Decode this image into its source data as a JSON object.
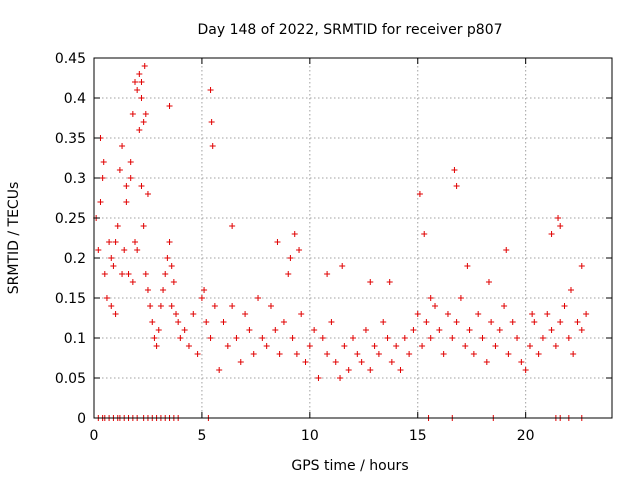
{
  "chart_data": {
    "type": "scatter",
    "title": "Day 148 of 2022, SRMTID for receiver p807",
    "xlabel": "GPS time / hours",
    "ylabel": "SRMTID / TECUs",
    "xlim": [
      0,
      24
    ],
    "ylim": [
      0,
      0.45
    ],
    "xticks": [
      0,
      5,
      10,
      15,
      20
    ],
    "yticks": [
      0,
      0.05,
      0.1,
      0.15,
      0.2,
      0.25,
      0.3,
      0.35,
      0.4,
      0.45
    ],
    "xtick_labels": [
      "0",
      "5",
      "10",
      "15",
      "20"
    ],
    "ytick_labels": [
      "0",
      "0.05",
      "0.1",
      "0.15",
      "0.2",
      "0.25",
      "0.3",
      "0.35",
      "0.4",
      "0.45"
    ],
    "grid": true,
    "marker": "+",
    "color": "#e00000",
    "series": [
      {
        "name": "SRMTID",
        "x": [
          0.1,
          0.2,
          0.3,
          0.4,
          0.5,
          0.6,
          0.7,
          0.8,
          0.9,
          1.0,
          1.1,
          1.2,
          1.3,
          1.4,
          1.5,
          1.6,
          1.7,
          1.8,
          1.9,
          2.0,
          2.1,
          2.2,
          2.3,
          2.4,
          2.5,
          2.6,
          2.7,
          2.8,
          2.9,
          3.0,
          3.1,
          3.2,
          3.3,
          3.4,
          3.5,
          3.6,
          3.7,
          3.8,
          3.9,
          4.0,
          4.2,
          4.4,
          4.6,
          4.8,
          5.0,
          5.2,
          5.4,
          5.6,
          5.8,
          6.0,
          6.2,
          6.4,
          6.6,
          6.8,
          7.0,
          7.2,
          7.4,
          7.6,
          7.8,
          8.0,
          8.2,
          8.4,
          8.6,
          8.8,
          9.0,
          9.2,
          9.4,
          9.6,
          9.8,
          10.0,
          10.2,
          10.4,
          10.6,
          10.8,
          11.0,
          11.2,
          11.4,
          11.6,
          11.8,
          12.0,
          12.2,
          12.4,
          12.6,
          12.8,
          13.0,
          13.2,
          13.4,
          13.6,
          13.8,
          14.0,
          14.2,
          14.4,
          14.6,
          14.8,
          15.0,
          15.2,
          15.4,
          15.6,
          15.8,
          16.0,
          16.2,
          16.4,
          16.6,
          16.8,
          17.0,
          17.2,
          17.4,
          17.6,
          17.8,
          18.0,
          18.2,
          18.4,
          18.6,
          18.8,
          19.0,
          19.2,
          19.4,
          19.6,
          19.8,
          20.0,
          20.2,
          20.4,
          20.6,
          20.8,
          21.0,
          21.2,
          21.4,
          21.6,
          21.8,
          22.0,
          22.2,
          22.4,
          22.6,
          22.8,
          0.3,
          0.45,
          0.8,
          1.0,
          1.3,
          1.5,
          1.7,
          1.9,
          2.1,
          2.2,
          2.3,
          2.4,
          2.5,
          3.5,
          5.4,
          5.45,
          5.5,
          6.4,
          8.5,
          9.3,
          9.5,
          11.5,
          12.8,
          15.1,
          15.3,
          16.7,
          16.8,
          21.5,
          21.6,
          22.6,
          1.8,
          2.0,
          2.2,
          2.35,
          3.6,
          5.1,
          9.1,
          10.8,
          13.7,
          15.6,
          17.3,
          18.3,
          19.1,
          20.3,
          21.2,
          22.1,
          0.2,
          0.4,
          0.5,
          0.7,
          0.9,
          1.1,
          1.2,
          1.4,
          1.6,
          1.8,
          2.0,
          2.3,
          2.5,
          2.7,
          2.9,
          3.1,
          3.3,
          3.5,
          3.7,
          3.9,
          5.3,
          15.5,
          16.6,
          18.5,
          21.4,
          21.6,
          22.0,
          22.6
        ],
        "y": [
          0.25,
          0.21,
          0.27,
          0.3,
          0.18,
          0.15,
          0.22,
          0.14,
          0.19,
          0.13,
          0.24,
          0.31,
          0.18,
          0.21,
          0.29,
          0.18,
          0.32,
          0.38,
          0.42,
          0.41,
          0.36,
          0.29,
          0.24,
          0.18,
          0.16,
          0.14,
          0.12,
          0.1,
          0.09,
          0.11,
          0.14,
          0.16,
          0.18,
          0.2,
          0.22,
          0.19,
          0.17,
          0.13,
          0.12,
          0.1,
          0.11,
          0.09,
          0.13,
          0.08,
          0.15,
          0.12,
          0.1,
          0.14,
          0.06,
          0.12,
          0.09,
          0.14,
          0.1,
          0.07,
          0.13,
          0.11,
          0.08,
          0.15,
          0.1,
          0.09,
          0.14,
          0.11,
          0.08,
          0.12,
          0.18,
          0.1,
          0.08,
          0.13,
          0.07,
          0.09,
          0.11,
          0.05,
          0.1,
          0.08,
          0.12,
          0.07,
          0.05,
          0.09,
          0.06,
          0.1,
          0.08,
          0.07,
          0.11,
          0.06,
          0.09,
          0.08,
          0.12,
          0.1,
          0.07,
          0.09,
          0.06,
          0.1,
          0.08,
          0.11,
          0.13,
          0.09,
          0.12,
          0.1,
          0.14,
          0.11,
          0.08,
          0.13,
          0.1,
          0.12,
          0.15,
          0.09,
          0.11,
          0.08,
          0.13,
          0.1,
          0.07,
          0.12,
          0.09,
          0.11,
          0.14,
          0.08,
          0.12,
          0.1,
          0.07,
          0.06,
          0.09,
          0.12,
          0.08,
          0.1,
          0.13,
          0.11,
          0.09,
          0.12,
          0.14,
          0.1,
          0.08,
          0.12,
          0.11,
          0.13,
          0.35,
          0.32,
          0.2,
          0.22,
          0.34,
          0.27,
          0.3,
          0.22,
          0.43,
          0.4,
          0.37,
          0.38,
          0.28,
          0.39,
          0.41,
          0.37,
          0.34,
          0.24,
          0.22,
          0.23,
          0.21,
          0.19,
          0.17,
          0.28,
          0.23,
          0.31,
          0.29,
          0.25,
          0.24,
          0.19,
          0.17,
          0.21,
          0.42,
          0.44,
          0.14,
          0.16,
          0.2,
          0.18,
          0.17,
          0.15,
          0.19,
          0.17,
          0.21,
          0.13,
          0.23,
          0.16,
          0,
          0,
          0,
          0,
          0,
          0,
          0,
          0,
          0,
          0,
          0,
          0,
          0,
          0,
          0,
          0,
          0,
          0,
          0,
          0,
          0,
          0,
          0,
          0,
          0,
          0,
          0,
          0
        ]
      }
    ]
  }
}
